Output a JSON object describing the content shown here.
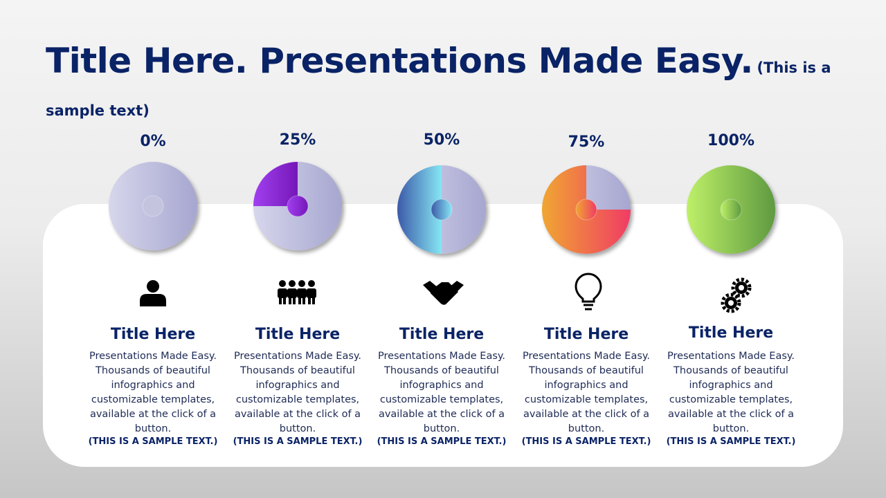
{
  "header": {
    "title": "Title Here. Presentations Made Easy.",
    "subtitle": "(This is a sample text)"
  },
  "items": [
    {
      "percent": 0,
      "percent_label": "0%",
      "color_from": "#c8c8e4",
      "color_to": "#c8c8e4",
      "title": "Title Here",
      "body": "Presentations Made Easy. Thousands of beautiful infographics and customizable templates, available at the click of a button.",
      "note": "(THIS IS A SAMPLE TEXT.)"
    },
    {
      "percent": 25,
      "percent_label": "25%",
      "color_from": "#a23ff0",
      "color_to": "#7418b8",
      "title": "Title Here",
      "body": "Presentations Made Easy. Thousands of beautiful infographics and customizable templates, available at the click of a button.",
      "note": "(THIS IS A SAMPLE TEXT.)"
    },
    {
      "percent": 50,
      "percent_label": "50%",
      "color_from": "#3c5aa8",
      "color_to": "#86e6f4",
      "title": "Title Here",
      "body": "Presentations Made Easy. Thousands of beautiful infographics and customizable templates, available at the click of a button.",
      "note": "(THIS IS A SAMPLE TEXT.)"
    },
    {
      "percent": 75,
      "percent_label": "75%",
      "color_from": "#f0a632",
      "color_to": "#f03c64",
      "title": "Title Here",
      "body": "Presentations Made Easy. Thousands of beautiful infographics and customizable templates, available at the click of a button.",
      "note": "(THIS IS A SAMPLE TEXT.)"
    },
    {
      "percent": 100,
      "percent_label": "100%",
      "color_from": "#bef068",
      "color_to": "#5e9a40",
      "title": "Title Here",
      "body": "Presentations Made Easy. Thousands of beautiful infographics and customizable templates, available at the click of a button.",
      "note": "(THIS IS A SAMPLE TEXT.)"
    }
  ]
}
